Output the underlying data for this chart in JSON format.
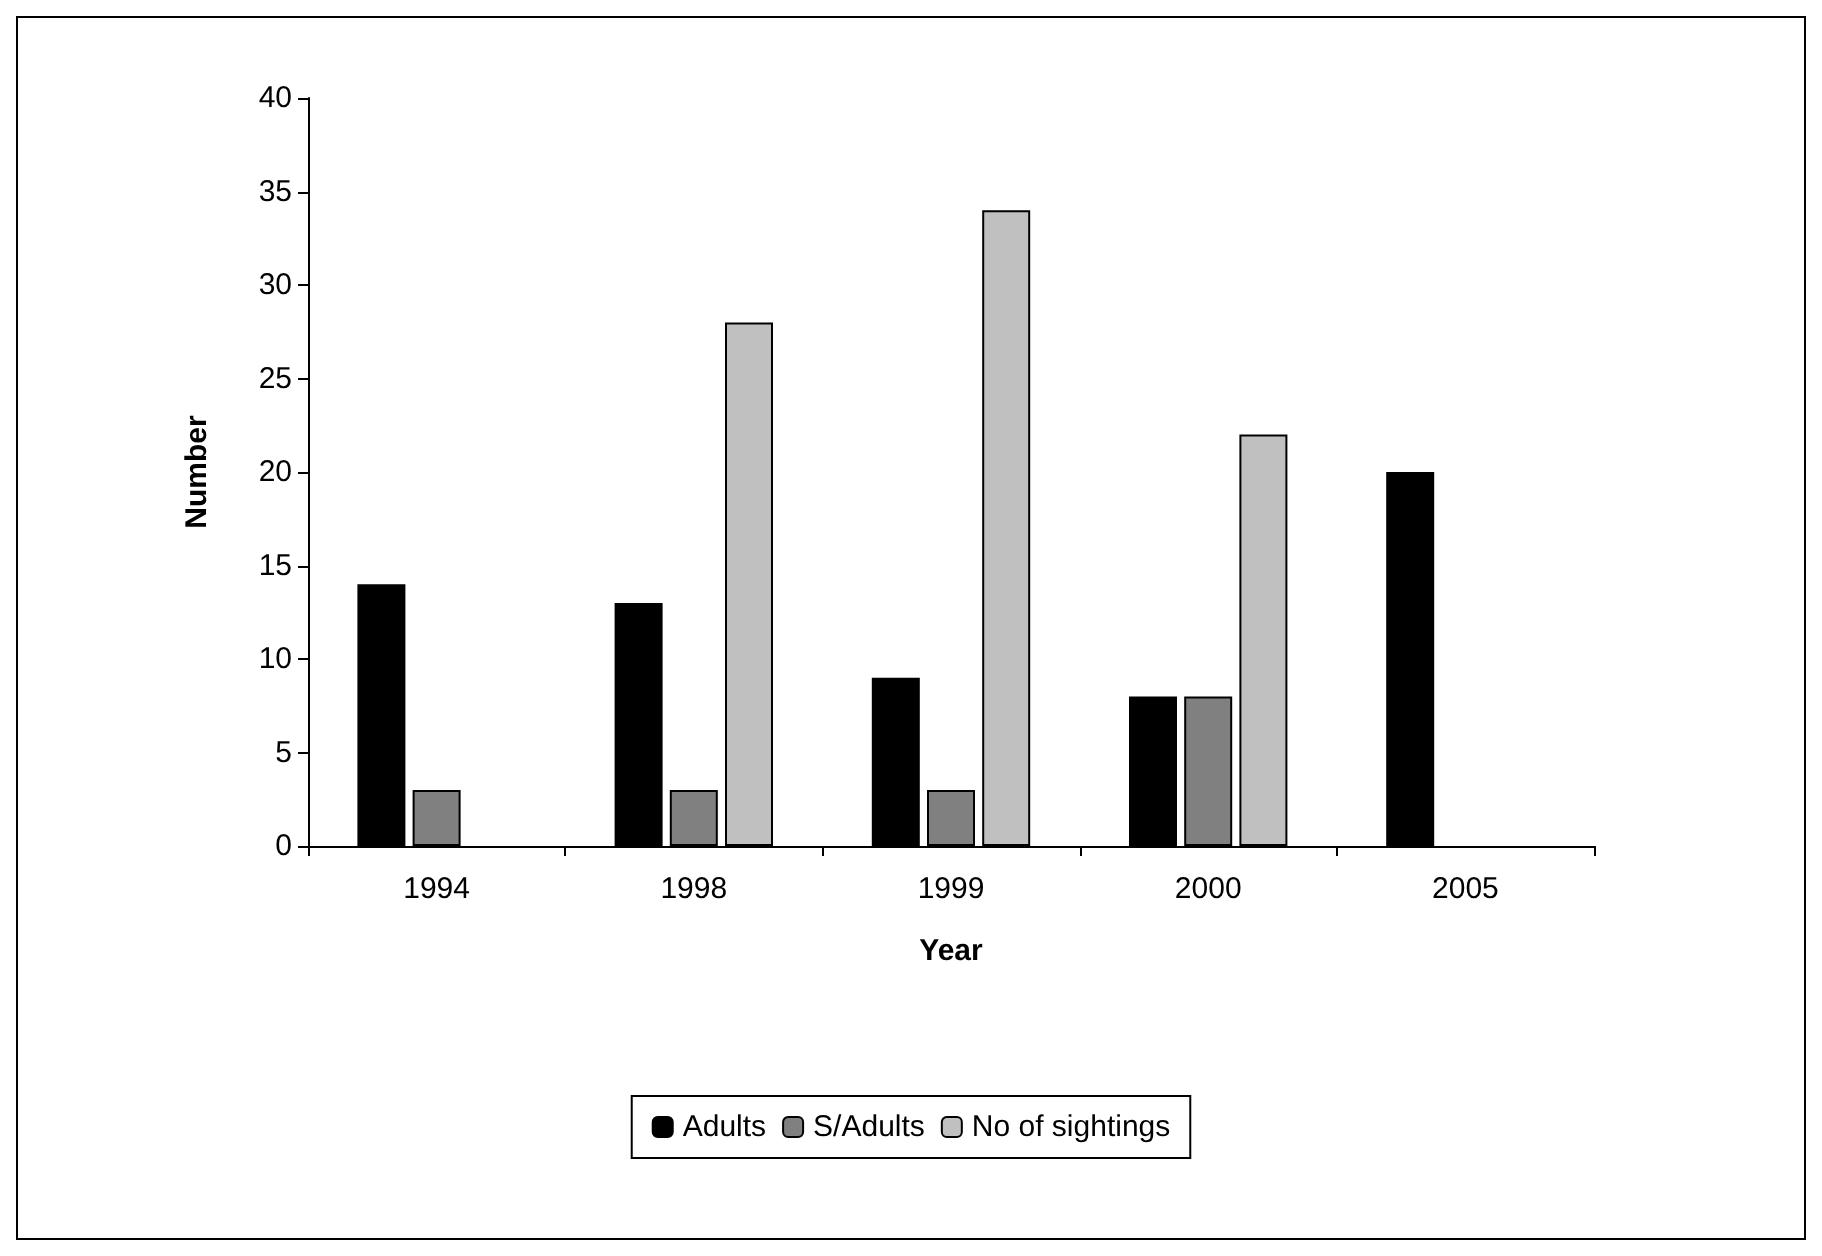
{
  "chart_data": {
    "type": "bar",
    "xlabel": "Year",
    "ylabel": "Number",
    "categories": [
      "1994",
      "1998",
      "1999",
      "2000",
      "2005"
    ],
    "series": [
      {
        "name": "Adults",
        "color": "#000000",
        "values": [
          14,
          13,
          9,
          8,
          20
        ]
      },
      {
        "name": "S/Adults",
        "color": "#808080",
        "values": [
          3,
          3,
          3,
          8,
          null
        ]
      },
      {
        "name": "No of sightings",
        "color": "#c0c0c0",
        "values": [
          null,
          28,
          34,
          22,
          null
        ]
      }
    ],
    "ylim": [
      0,
      40
    ],
    "yticks": [
      0,
      5,
      10,
      15,
      20,
      25,
      30,
      35,
      40
    ],
    "grid": false,
    "legend": "bottom"
  }
}
